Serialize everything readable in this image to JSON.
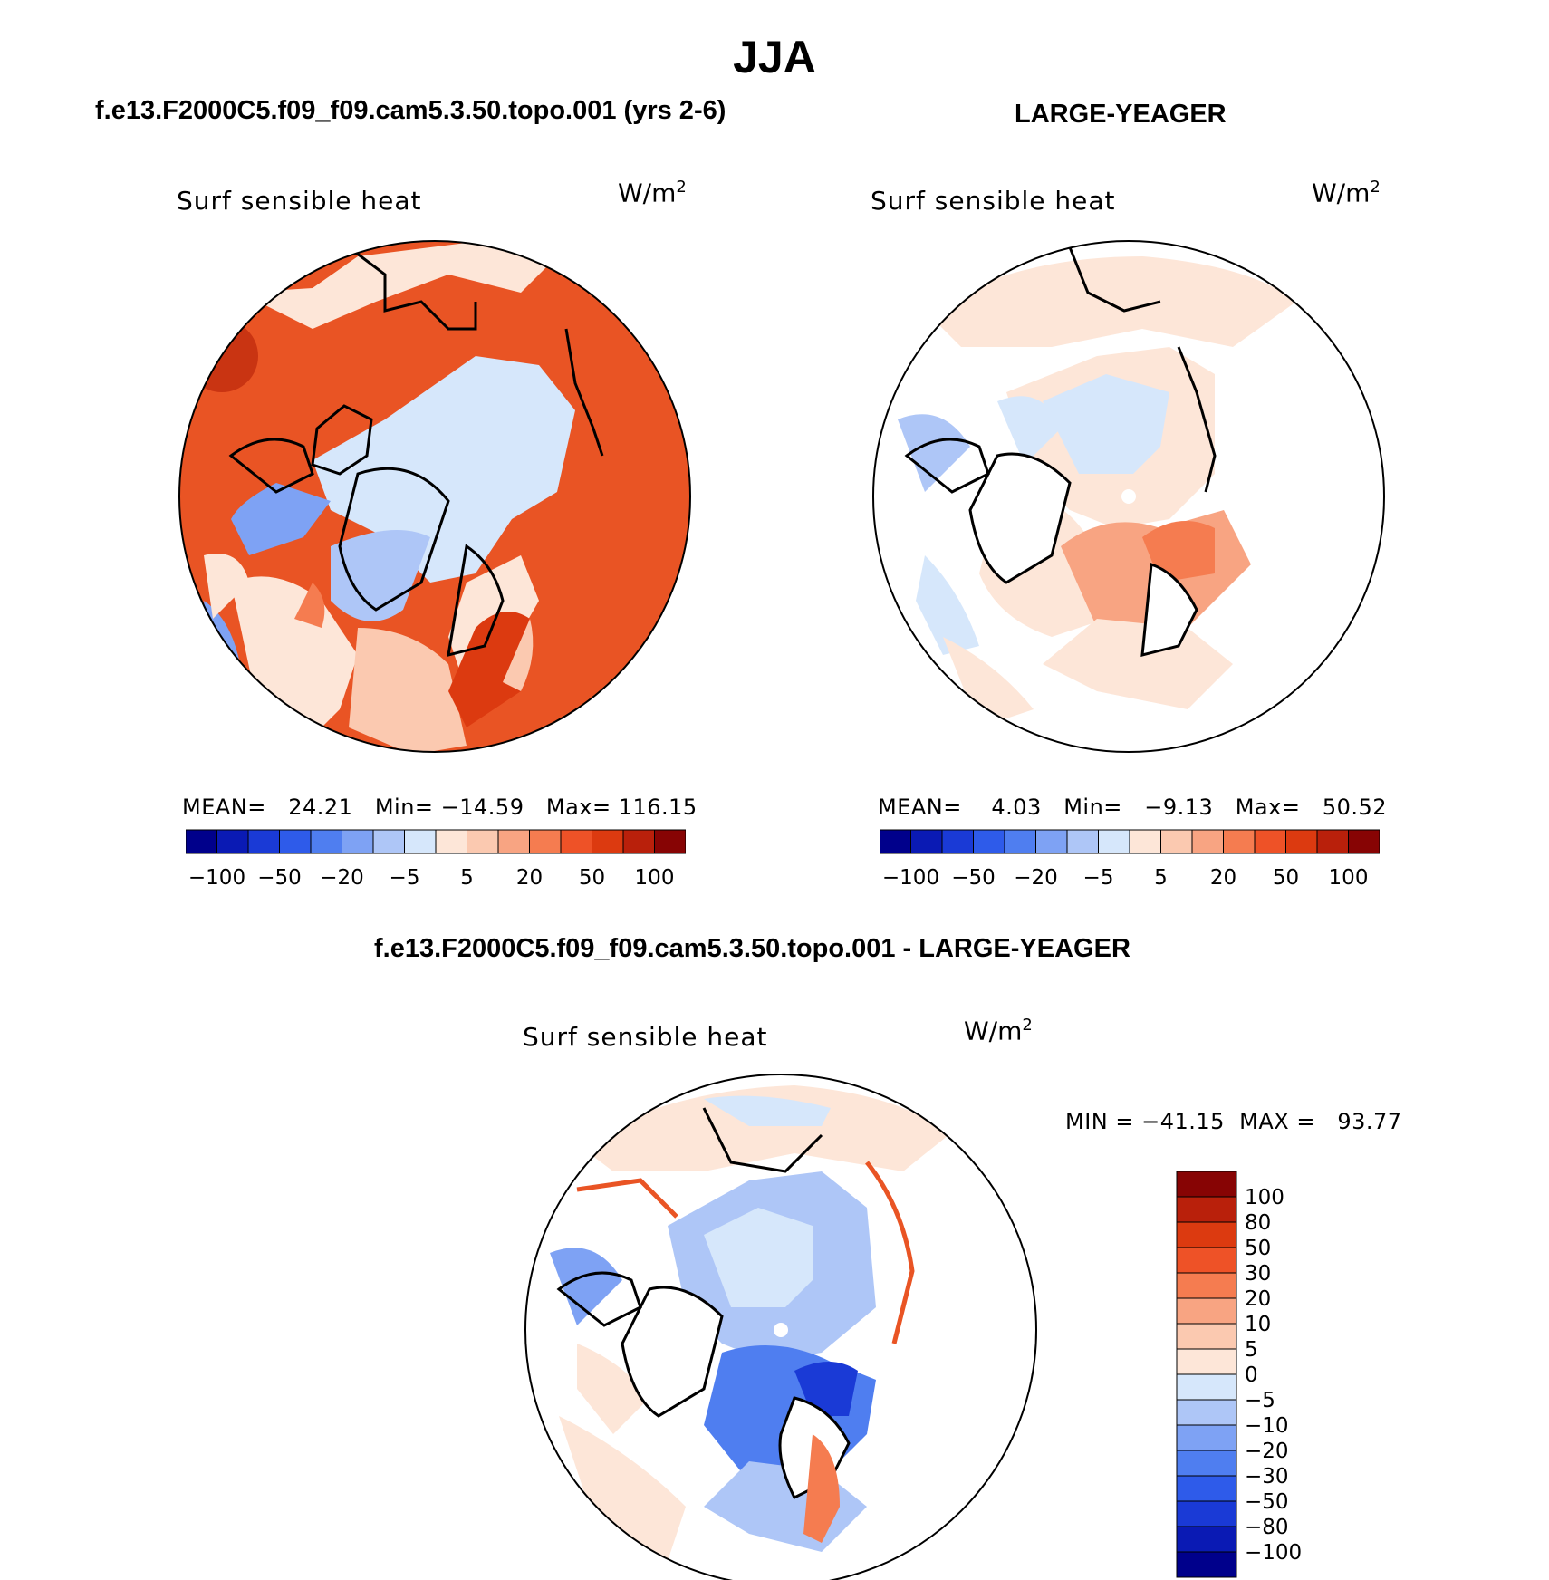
{
  "title": "JJA",
  "panels": [
    {
      "title": "f.e13.F2000C5.f09_f09.cam5.3.50.topo.001 (yrs 2-6)",
      "variable": "Surf sensible heat",
      "units_base": "W/m",
      "units_exp": "2",
      "stats": "MEAN=   24.21   Min= −14.59   Max= 116.15"
    },
    {
      "title": "LARGE-YEAGER",
      "variable": "Surf sensible heat",
      "units_base": "W/m",
      "units_exp": "2",
      "stats": "MEAN=    4.03   Min=   −9.13   Max=   50.52"
    },
    {
      "title": "f.e13.F2000C5.f09_f09.cam5.3.50.topo.001 - LARGE-YEAGER",
      "variable": "Surf sensible heat",
      "units_base": "W/m",
      "units_exp": "2",
      "stats": "MIN = −41.15  MAX =   93.77"
    }
  ],
  "colorbar_top": {
    "colors": [
      "#00008b",
      "#0a1ab4",
      "#1a3ad6",
      "#2e5bea",
      "#4f7ef0",
      "#7ea2f4",
      "#aec6f7",
      "#d6e7fb",
      "#fde6d8",
      "#fbc9b0",
      "#f8a482",
      "#f57c50",
      "#ee5227",
      "#dc3a10",
      "#b9200b",
      "#870404"
    ],
    "labels": [
      "−100",
      "−50",
      "−20",
      "−5",
      "5",
      "20",
      "50",
      "100"
    ]
  },
  "colorbar_diff": {
    "colors": [
      "#870404",
      "#b9200b",
      "#dc3a10",
      "#ee5227",
      "#f57c50",
      "#f8a482",
      "#fbc9b0",
      "#fde6d8",
      "#d6e7fb",
      "#aec6f7",
      "#7ea2f4",
      "#4f7ef0",
      "#2e5bea",
      "#1a3ad6",
      "#0a1ab4",
      "#00008b"
    ],
    "labels": [
      "100",
      "80",
      "50",
      "30",
      "20",
      "10",
      "5",
      "0",
      "−5",
      "−10",
      "−20",
      "−30",
      "−50",
      "−80",
      "−100"
    ]
  }
}
